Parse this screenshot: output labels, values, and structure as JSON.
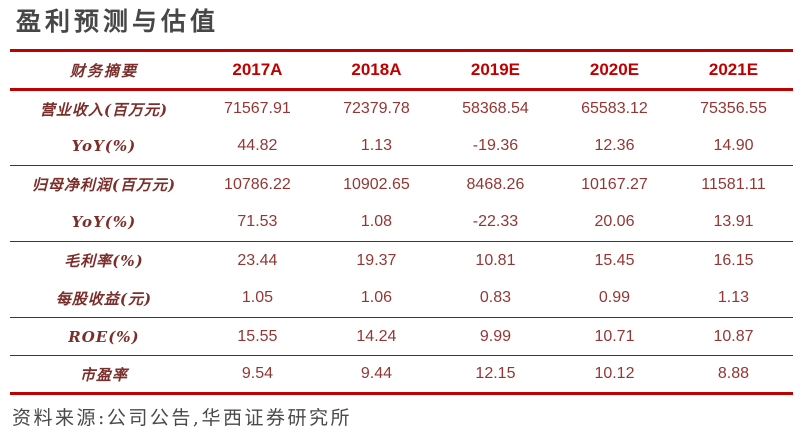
{
  "title": "盈利预测与估值",
  "colors": {
    "accent_red": "#c00000",
    "row_label_text": "#7b2f2b",
    "value_text": "#943634",
    "title_text": "#474747",
    "footer_text": "#4a4a4a"
  },
  "table": {
    "header": {
      "label": "财务摘要",
      "years": [
        "2017A",
        "2018A",
        "2019E",
        "2020E",
        "2021E"
      ]
    },
    "rows": [
      {
        "label": "营业收入(百万元)",
        "values": [
          "71567.91",
          "72379.78",
          "58368.54",
          "65583.12",
          "75356.55"
        ]
      },
      {
        "label": "YoY(%)",
        "values": [
          "44.82",
          "1.13",
          "-19.36",
          "12.36",
          "14.90"
        ]
      },
      {
        "label": "归母净利润(百万元)",
        "values": [
          "10786.22",
          "10902.65",
          "8468.26",
          "10167.27",
          "11581.11"
        ]
      },
      {
        "label": "YoY(%)",
        "values": [
          "71.53",
          "1.08",
          "-22.33",
          "20.06",
          "13.91"
        ]
      },
      {
        "label": "毛利率(%)",
        "values": [
          "23.44",
          "19.37",
          "10.81",
          "15.45",
          "16.15"
        ]
      },
      {
        "label": "每股收益(元)",
        "values": [
          "1.05",
          "1.06",
          "0.83",
          "0.99",
          "1.13"
        ]
      },
      {
        "label": "ROE(%)",
        "values": [
          "15.55",
          "14.24",
          "9.99",
          "10.71",
          "10.87"
        ]
      },
      {
        "label": "市盈率",
        "values": [
          "9.54",
          "9.44",
          "12.15",
          "10.12",
          "8.88"
        ]
      }
    ]
  },
  "footer": "资料来源:公司公告,华西证券研究所"
}
